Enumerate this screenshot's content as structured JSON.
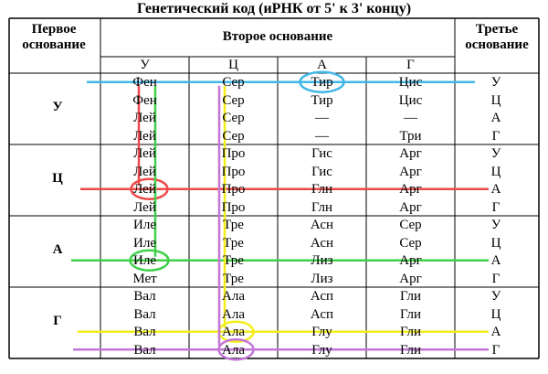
{
  "title": "Генетический код (иРНК от 5' к 3' концу)",
  "headers": {
    "first": "Первое основание",
    "second": "Второе основание",
    "third": "Третье основание",
    "second_bases": [
      "У",
      "Ц",
      "А",
      "Г"
    ]
  },
  "first_bases": [
    "У",
    "Ц",
    "А",
    "Г"
  ],
  "rows": [
    {
      "cells": [
        "Фен",
        "Сер",
        "Тир",
        "Цис"
      ],
      "third": "У"
    },
    {
      "cells": [
        "Фен",
        "Сер",
        "Тир",
        "Цис"
      ],
      "third": "Ц"
    },
    {
      "cells": [
        "Лей",
        "Сер",
        "—",
        "—"
      ],
      "third": "А"
    },
    {
      "cells": [
        "Лей",
        "Сер",
        "—",
        "Три"
      ],
      "third": "Г"
    },
    {
      "cells": [
        "Лей",
        "Про",
        "Гис",
        "Арг"
      ],
      "third": "У"
    },
    {
      "cells": [
        "Лей",
        "Про",
        "Гис",
        "Арг"
      ],
      "third": "Ц"
    },
    {
      "cells": [
        "Лей",
        "Про",
        "Глн",
        "Арг"
      ],
      "third": "А"
    },
    {
      "cells": [
        "Лей",
        "Про",
        "Глн",
        "Арг"
      ],
      "third": "Г"
    },
    {
      "cells": [
        "Иле",
        "Тре",
        "Асн",
        "Сер"
      ],
      "third": "У"
    },
    {
      "cells": [
        "Иле",
        "Тре",
        "Асн",
        "Сер"
      ],
      "third": "Ц"
    },
    {
      "cells": [
        "Иле",
        "Тре",
        "Лиз",
        "Арг"
      ],
      "third": "А"
    },
    {
      "cells": [
        "Мет",
        "Тре",
        "Лиз",
        "Арг"
      ],
      "third": "Г"
    },
    {
      "cells": [
        "Вал",
        "Ала",
        "Асп",
        "Гли"
      ],
      "third": "У"
    },
    {
      "cells": [
        "Вал",
        "Ала",
        "Асп",
        "Гли"
      ],
      "third": "Ц"
    },
    {
      "cells": [
        "Вал",
        "Ала",
        "Глу",
        "Гли"
      ],
      "third": "А"
    },
    {
      "cells": [
        "Вал",
        "Ала",
        "Глу",
        "Гли"
      ],
      "third": "Г"
    }
  ],
  "colors": {
    "blue": "#41b7e6",
    "red": "#ef4a4a",
    "green": "#3fd04a",
    "yellow": "#f3ee1a",
    "purple": "#c376d6"
  }
}
